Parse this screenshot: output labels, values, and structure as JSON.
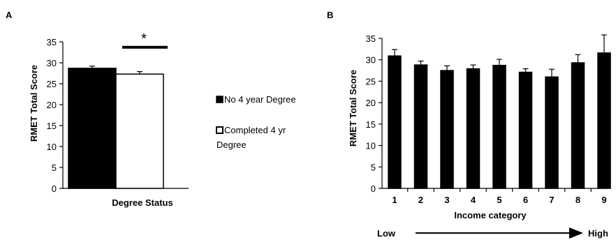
{
  "chart_data": [
    {
      "panel": "A",
      "type": "bar",
      "title": "",
      "xlabel": "Degree Status",
      "ylabel": "RMET Total Score",
      "ylim": [
        0,
        35
      ],
      "yticks": [
        "0",
        "5",
        "10",
        "15",
        "20",
        "25",
        "30",
        "35"
      ],
      "categories": [
        "No 4 year Degree",
        "Completed 4 yr Degree"
      ],
      "values": [
        28.7,
        27.3
      ],
      "errors": [
        0.5,
        0.6
      ],
      "colors": [
        "#000000",
        "#ffffff"
      ],
      "significance": "*",
      "legend": {
        "placement": "right",
        "entries": [
          {
            "label": "No 4 year Degree",
            "color": "#000000"
          },
          {
            "label_lines": [
              "Completed 4 yr",
              "Degree"
            ],
            "color": "#ffffff"
          }
        ]
      }
    },
    {
      "panel": "B",
      "type": "bar",
      "title": "",
      "xlabel": "Income category",
      "ylabel": "RMET Total Score",
      "ylim": [
        0,
        35
      ],
      "yticks": [
        "0",
        "5",
        "10",
        "15",
        "20",
        "25",
        "30",
        "35"
      ],
      "categories": [
        "1",
        "2",
        "3",
        "4",
        "5",
        "6",
        "7",
        "8",
        "9"
      ],
      "values": [
        30.9,
        28.8,
        27.5,
        27.9,
        28.7,
        27.1,
        26.0,
        29.3,
        31.6
      ],
      "errors": [
        1.5,
        0.9,
        1.1,
        0.9,
        1.4,
        0.8,
        1.8,
        1.9,
        4.2
      ],
      "colors": [
        "#000000"
      ],
      "arrow": {
        "start_label": "Low",
        "end_label": "High"
      }
    }
  ]
}
